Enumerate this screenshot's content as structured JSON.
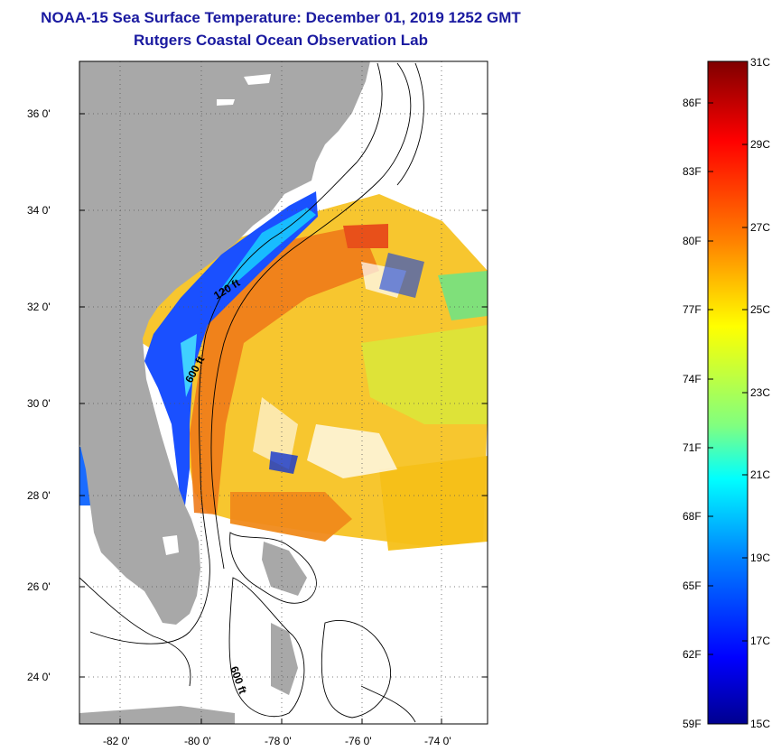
{
  "header": {
    "title": "NOAA-15 Sea Surface Temperature:  December 01, 2019 1252 GMT",
    "subtitle": "Rutgers Coastal Ocean Observation Lab"
  },
  "map": {
    "lat_labels": [
      "36 0'",
      "34 0'",
      "32 0'",
      "30 0'",
      "28 0'",
      "26 0'",
      "24 0'"
    ],
    "lon_labels": [
      "-82 0'",
      "-80 0'",
      "-78 0'",
      "-76 0'",
      "-74 0'"
    ],
    "contour_labels": [
      "120 ft",
      "600 ft",
      "600 ft"
    ],
    "land_color": "#a8a8a8"
  },
  "colorbar": {
    "fahrenheit_labels": [
      "86F",
      "83F",
      "80F",
      "77F",
      "74F",
      "71F",
      "68F",
      "65F",
      "62F",
      "59F"
    ],
    "celsius_labels": [
      "31C",
      "29C",
      "27C",
      "25C",
      "23C",
      "21C",
      "19C",
      "17C",
      "15C"
    ],
    "colormap": [
      "#7f0000",
      "#ff0000",
      "#ff8000",
      "#ffff00",
      "#80ff80",
      "#00ffff",
      "#0080ff",
      "#0000ff",
      "#00008f"
    ]
  }
}
